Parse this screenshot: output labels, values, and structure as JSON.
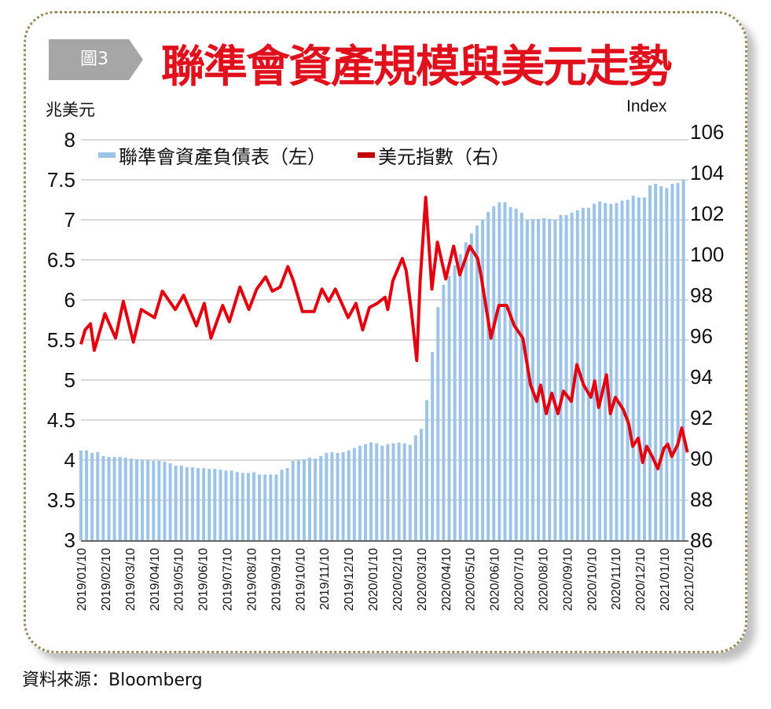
{
  "header": {
    "figure_tag": "圖3",
    "title": "聯準會資產規模與美元走勢"
  },
  "footer": {
    "source": "資料來源：Bloomberg"
  },
  "colors": {
    "bars": "#9dc3e6",
    "line": "#e3000f",
    "title": "#e0101c",
    "grid": "#d9d9d9"
  },
  "chart_data": {
    "type": "bar+line",
    "title": "聯準會資產規模與美元走勢",
    "left_axis": {
      "label": "兆美元",
      "ylim": [
        3,
        8
      ],
      "ticks": [
        "3",
        "3.5",
        "4",
        "4.5",
        "5",
        "5.5",
        "6",
        "6.5",
        "7",
        "7.5",
        "8"
      ]
    },
    "right_axis": {
      "label": "Index",
      "ylim": [
        86,
        106
      ],
      "ticks": [
        "86",
        "88",
        "90",
        "92",
        "94",
        "96",
        "98",
        "100",
        "102",
        "104",
        "106"
      ]
    },
    "x_ticks": [
      "2019/01/10",
      "2019/02/10",
      "2019/03/10",
      "2019/04/10",
      "2019/05/10",
      "2019/06/10",
      "2019/07/10",
      "2019/08/10",
      "2019/09/10",
      "2019/10/10",
      "2019/11/10",
      "2019/12/10",
      "2020/01/10",
      "2020/02/10",
      "2020/03/10",
      "2020/04/10",
      "2020/05/10",
      "2020/06/10",
      "2020/07/10",
      "2020/08/10",
      "2020/09/10",
      "2020/10/10",
      "2020/11/10",
      "2020/12/10",
      "2021/01/10",
      "2021/02/10"
    ],
    "x_unit": "weeks since 2019/01/10",
    "x_range_weeks": [
      0,
      108.9
    ],
    "legend": {
      "position": "top",
      "entries": [
        "聯準會資產負債表（左）",
        "美元指數（右）"
      ]
    },
    "grid": true,
    "series": [
      {
        "name": "聯準會資產負債表（左）",
        "type": "bar",
        "axis": "left",
        "values": [
          4.12,
          4.12,
          4.09,
          4.1,
          4.05,
          4.04,
          4.04,
          4.04,
          4.03,
          4.02,
          4.01,
          4.0,
          4.0,
          3.99,
          3.99,
          3.98,
          3.96,
          3.93,
          3.93,
          3.91,
          3.91,
          3.9,
          3.9,
          3.89,
          3.89,
          3.88,
          3.87,
          3.87,
          3.85,
          3.84,
          3.84,
          3.85,
          3.82,
          3.82,
          3.82,
          3.82,
          3.88,
          3.9,
          3.99,
          4.0,
          4.01,
          4.03,
          4.02,
          4.05,
          4.09,
          4.1,
          4.09,
          4.1,
          4.12,
          4.15,
          4.18,
          4.2,
          4.22,
          4.21,
          4.18,
          4.2,
          4.21,
          4.22,
          4.21,
          4.19,
          4.31,
          4.39,
          4.75,
          5.35,
          5.91,
          6.19,
          6.3,
          6.43,
          6.57,
          6.72,
          6.83,
          6.93,
          7.0,
          7.1,
          7.17,
          7.22,
          7.22,
          7.16,
          7.14,
          7.09,
          7.0,
          7.01,
          7.01,
          7.02,
          7.01,
          7.0,
          7.06,
          7.06,
          7.09,
          7.12,
          7.15,
          7.15,
          7.2,
          7.23,
          7.21,
          7.2,
          7.21,
          7.24,
          7.25,
          7.3,
          7.28,
          7.28,
          7.43,
          7.45,
          7.42,
          7.4,
          7.45,
          7.46,
          7.5
        ]
      },
      {
        "name": "美元指數（右）",
        "type": "line",
        "axis": "right",
        "points": [
          [
            0,
            95.6
          ],
          [
            0.75,
            96.3
          ],
          [
            1.7,
            96.6
          ],
          [
            2.4,
            95.3
          ],
          [
            4.3,
            97.1
          ],
          [
            6.2,
            95.9
          ],
          [
            7.6,
            97.7
          ],
          [
            9.4,
            95.7
          ],
          [
            10.8,
            97.3
          ],
          [
            13.2,
            96.9
          ],
          [
            14.6,
            98.2
          ],
          [
            16.9,
            97.3
          ],
          [
            18.4,
            98.0
          ],
          [
            20.7,
            96.5
          ],
          [
            22.1,
            97.6
          ],
          [
            23.3,
            95.9
          ],
          [
            25.4,
            97.5
          ],
          [
            26.6,
            96.7
          ],
          [
            28.5,
            98.4
          ],
          [
            30.1,
            97.3
          ],
          [
            31.5,
            98.3
          ],
          [
            33.1,
            98.9
          ],
          [
            34.3,
            98.2
          ],
          [
            35.7,
            98.4
          ],
          [
            37.1,
            99.4
          ],
          [
            38.1,
            98.7
          ],
          [
            39.7,
            97.2
          ],
          [
            41.8,
            97.2
          ],
          [
            43.2,
            98.3
          ],
          [
            44.4,
            97.7
          ],
          [
            45.6,
            98.3
          ],
          [
            47.9,
            96.9
          ],
          [
            49.3,
            97.6
          ],
          [
            50.5,
            96.3
          ],
          [
            51.7,
            97.4
          ],
          [
            53.1,
            97.6
          ],
          [
            54.5,
            97.9
          ],
          [
            55.0,
            97.3
          ],
          [
            55.9,
            98.7
          ],
          [
            57.6,
            99.8
          ],
          [
            58.3,
            99.2
          ],
          [
            59.2,
            97.3
          ],
          [
            60.2,
            94.8
          ],
          [
            60.8,
            98.7
          ],
          [
            61.8,
            102.8
          ],
          [
            62.9,
            98.3
          ],
          [
            63.9,
            100.6
          ],
          [
            65.4,
            98.8
          ],
          [
            66.8,
            100.4
          ],
          [
            67.9,
            99.0
          ],
          [
            69.7,
            100.4
          ],
          [
            71.1,
            99.8
          ],
          [
            71.7,
            99.0
          ],
          [
            73.5,
            95.9
          ],
          [
            74.9,
            97.5
          ],
          [
            76.3,
            97.5
          ],
          [
            77.7,
            96.5
          ],
          [
            79.2,
            95.9
          ],
          [
            80.6,
            93.6
          ],
          [
            81.7,
            92.8
          ],
          [
            82.4,
            93.6
          ],
          [
            83.4,
            92.2
          ],
          [
            84.4,
            93.2
          ],
          [
            85.5,
            92.2
          ],
          [
            86.5,
            93.3
          ],
          [
            87.9,
            92.8
          ],
          [
            88.9,
            94.6
          ],
          [
            90.1,
            93.6
          ],
          [
            91.4,
            93.0
          ],
          [
            92.1,
            93.8
          ],
          [
            92.8,
            92.5
          ],
          [
            94.2,
            94.1
          ],
          [
            94.9,
            92.2
          ],
          [
            95.8,
            93.0
          ],
          [
            97.2,
            92.4
          ],
          [
            98.2,
            91.7
          ],
          [
            98.9,
            90.6
          ],
          [
            99.9,
            91.0
          ],
          [
            100.7,
            89.8
          ],
          [
            101.4,
            90.6
          ],
          [
            102.4,
            90.1
          ],
          [
            103.4,
            89.5
          ],
          [
            104.5,
            90.5
          ],
          [
            105.2,
            90.7
          ],
          [
            105.9,
            90.1
          ],
          [
            107.0,
            90.7
          ],
          [
            107.7,
            91.5
          ],
          [
            108.7,
            90.3
          ]
        ]
      }
    ]
  }
}
